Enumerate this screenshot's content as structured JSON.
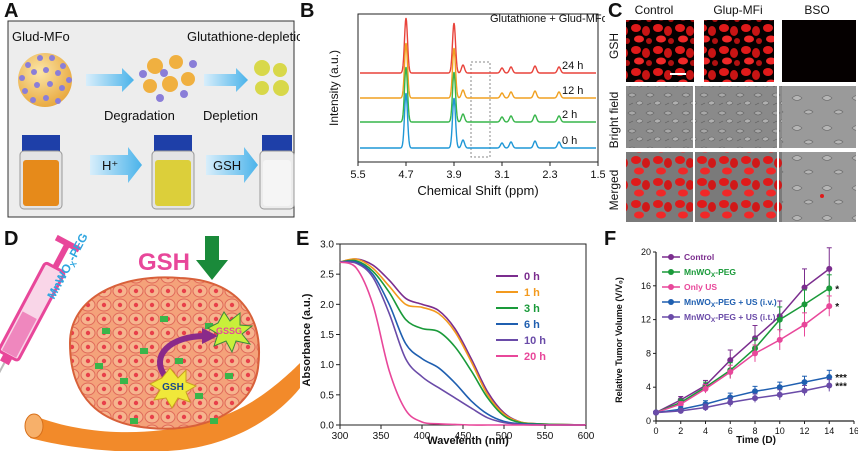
{
  "panel_labels": {
    "a": "A",
    "b": "B",
    "c": "C",
    "d": "D",
    "e": "E",
    "f": "F"
  },
  "panel_a": {
    "top_left": "Glud-MFo",
    "top_right": "Glutathione-depletion",
    "step1": "Degradation",
    "step2": "Depletion",
    "arrow1": "H⁺",
    "arrow2": "GSH"
  },
  "panel_c": {
    "cols": [
      "Control",
      "Glup-MFi",
      "BSO"
    ],
    "rows": [
      "GSH",
      "Bright field",
      "Merged"
    ]
  },
  "panel_d": {
    "syringe_label": "MnWO",
    "syringe_sub": "X",
    "syringe_suffix": "-PEG",
    "gsh_big": "GSH",
    "gssg": "GSSG",
    "gsh_small": "GSH"
  },
  "colors": {
    "nmr": [
      "#e8423a",
      "#f0a020",
      "#37b54a",
      "#1f97d6"
    ],
    "abs": [
      "#7b2d8e",
      "#f39a1e",
      "#1a9a3a",
      "#1f5fb0",
      "#6a4ba8",
      "#e8479a"
    ],
    "tumor": [
      "#7b2d8e",
      "#1a9a3a",
      "#e8479a",
      "#1f5fb0",
      "#6a4ba8"
    ]
  },
  "chart_data": [
    {
      "id": "B",
      "type": "line",
      "title": "Glutathione + Glud-MFo",
      "xlabel": "Chemical Shift (ppm)",
      "ylabel": "Intensity (a.u.)",
      "x_ticks": [
        "5.5",
        "4.7",
        "3.9",
        "3.1",
        "2.3",
        "1.5"
      ],
      "xlim": [
        5.5,
        1.5
      ],
      "series": [
        {
          "name": "24 h",
          "peaks": [
            [
              4.7,
              55
            ],
            [
              3.9,
              50
            ],
            [
              3.75,
              8
            ],
            [
              3.1,
              5
            ],
            [
              2.95,
              6
            ],
            [
              2.55,
              7
            ],
            [
              2.15,
              6
            ]
          ]
        },
        {
          "name": "12 h",
          "peaks": [
            [
              4.7,
              55
            ],
            [
              3.9,
              50
            ],
            [
              3.75,
              8
            ],
            [
              3.1,
              5
            ],
            [
              2.95,
              6
            ],
            [
              2.55,
              7
            ],
            [
              2.15,
              6
            ]
          ]
        },
        {
          "name": "2 h",
          "peaks": [
            [
              4.7,
              55
            ],
            [
              3.9,
              50
            ],
            [
              3.75,
              8
            ],
            [
              3.1,
              5
            ],
            [
              2.95,
              6
            ],
            [
              2.55,
              7
            ],
            [
              2.15,
              6
            ]
          ]
        },
        {
          "name": "0 h",
          "peaks": [
            [
              4.7,
              55
            ],
            [
              3.9,
              50
            ],
            [
              3.75,
              8
            ],
            [
              3.1,
              5
            ],
            [
              2.95,
              6
            ],
            [
              2.55,
              7
            ],
            [
              2.15,
              6
            ]
          ]
        }
      ]
    },
    {
      "id": "E",
      "type": "line",
      "xlabel": "Wavelenth (nm)",
      "ylabel": "Absorbance (a.u.)",
      "xlim": [
        300,
        600
      ],
      "ylim": [
        0,
        3.0
      ],
      "x_ticks": [
        300,
        350,
        400,
        450,
        500,
        550,
        600
      ],
      "y_ticks": [
        "0.0",
        "0.5",
        "1.0",
        "1.5",
        "2.0",
        "2.5",
        "3.0"
      ],
      "series": [
        {
          "name": "0 h",
          "x": [
            300,
            320,
            340,
            360,
            380,
            400,
            420,
            440,
            460,
            480,
            500,
            520,
            540,
            560,
            600
          ],
          "y": [
            2.7,
            2.75,
            2.65,
            2.4,
            2.1,
            2.0,
            1.9,
            1.6,
            1.1,
            0.55,
            0.2,
            0.05,
            0.02,
            0.01,
            0.0
          ]
        },
        {
          "name": "1 h",
          "x": [
            300,
            320,
            340,
            360,
            380,
            400,
            420,
            440,
            460,
            480,
            500,
            520,
            540,
            560,
            600
          ],
          "y": [
            2.7,
            2.75,
            2.6,
            2.3,
            2.0,
            1.95,
            1.85,
            1.55,
            1.05,
            0.5,
            0.18,
            0.05,
            0.02,
            0.01,
            0.0
          ]
        },
        {
          "name": "3 h",
          "x": [
            300,
            320,
            340,
            360,
            380,
            400,
            420,
            440,
            460,
            480,
            500,
            520,
            540,
            560,
            600
          ],
          "y": [
            2.7,
            2.72,
            2.55,
            2.2,
            1.75,
            1.6,
            1.55,
            1.3,
            0.9,
            0.45,
            0.15,
            0.04,
            0.02,
            0.01,
            0.0
          ]
        },
        {
          "name": "6 h",
          "x": [
            300,
            320,
            340,
            360,
            380,
            400,
            420,
            440,
            460,
            480,
            500,
            520,
            540,
            560,
            600
          ],
          "y": [
            2.7,
            2.7,
            2.5,
            2.0,
            1.35,
            1.1,
            0.95,
            0.7,
            0.4,
            0.18,
            0.06,
            0.02,
            0.01,
            0.0,
            0.0
          ]
        },
        {
          "name": "10 h",
          "x": [
            300,
            320,
            340,
            360,
            380,
            400,
            420,
            440,
            460,
            480,
            500,
            520,
            540,
            560,
            600
          ],
          "y": [
            2.7,
            2.68,
            2.45,
            1.85,
            1.1,
            0.8,
            0.62,
            0.45,
            0.28,
            0.12,
            0.04,
            0.01,
            0.0,
            0.0,
            0.0
          ]
        },
        {
          "name": "20 h",
          "x": [
            300,
            320,
            340,
            360,
            380,
            400,
            420,
            440,
            460,
            480,
            500,
            520,
            540,
            560,
            600
          ],
          "y": [
            2.7,
            2.6,
            2.0,
            0.9,
            0.25,
            0.05,
            0.02,
            0.01,
            0.0,
            0.0,
            0.0,
            0.0,
            0.0,
            0.0,
            0.0
          ]
        }
      ]
    },
    {
      "id": "F",
      "type": "line",
      "xlabel": "Time (D)",
      "ylabel": "Relative Tumor Volume (V/V₀)",
      "xlim": [
        0,
        16
      ],
      "ylim": [
        0,
        20
      ],
      "x_ticks": [
        0,
        2,
        4,
        6,
        8,
        10,
        12,
        14,
        16
      ],
      "y_ticks": [
        0,
        4,
        8,
        12,
        16,
        20
      ],
      "series": [
        {
          "name": "Control",
          "x": [
            0,
            2,
            4,
            6,
            8,
            10,
            12,
            14
          ],
          "y": [
            1,
            2.5,
            4.2,
            7.2,
            9.8,
            12.4,
            15.8,
            18.0
          ],
          "err": [
            0,
            0.4,
            0.6,
            1.2,
            1.5,
            1.8,
            2.2,
            2.5
          ]
        },
        {
          "name": "MnWO",
          "sub": "X",
          "suffix": "-PEG",
          "x": [
            0,
            2,
            4,
            6,
            8,
            10,
            12,
            14
          ],
          "y": [
            1,
            2.2,
            4.0,
            6.0,
            8.6,
            12.0,
            13.8,
            15.7
          ],
          "err": [
            0,
            0.4,
            0.6,
            0.9,
            1.2,
            1.5,
            1.7,
            1.6
          ],
          "mark": "*"
        },
        {
          "name": "Only US",
          "x": [
            0,
            2,
            4,
            6,
            8,
            10,
            12,
            14
          ],
          "y": [
            1,
            2.0,
            3.8,
            5.8,
            8.0,
            9.6,
            11.4,
            13.6
          ],
          "err": [
            0,
            0.3,
            0.5,
            0.8,
            1.0,
            1.2,
            1.4,
            1.2
          ],
          "mark": "*"
        },
        {
          "name": "MnWO",
          "sub": "X",
          "suffix": "-PEG + US (i.v.)",
          "x": [
            0,
            2,
            4,
            6,
            8,
            10,
            12,
            14
          ],
          "y": [
            1,
            1.4,
            2.0,
            2.8,
            3.5,
            4.0,
            4.6,
            5.2
          ],
          "err": [
            0,
            0.3,
            0.4,
            0.5,
            0.6,
            0.6,
            0.7,
            0.8
          ],
          "mark": "***"
        },
        {
          "name": "MnWO",
          "sub": "X",
          "suffix": "-PEG + US (i.t.)",
          "x": [
            0,
            2,
            4,
            6,
            8,
            10,
            12,
            14
          ],
          "y": [
            1,
            1.2,
            1.6,
            2.2,
            2.7,
            3.1,
            3.6,
            4.2
          ],
          "err": [
            0,
            0.3,
            0.4,
            0.5,
            0.5,
            0.6,
            0.6,
            0.7
          ],
          "mark": "***"
        }
      ]
    }
  ]
}
